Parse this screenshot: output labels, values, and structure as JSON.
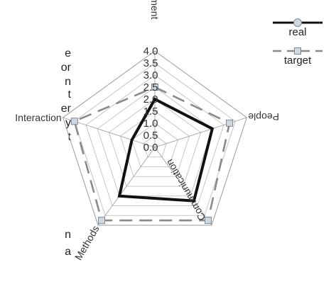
{
  "page_text": [
    "e",
    "or",
    "n",
    "t",
    "er",
    "y",
    "t",
    "n",
    "a"
  ],
  "chart_data": {
    "type": "radar",
    "axes": [
      "Commitment",
      "People",
      "Communication",
      "Methods",
      "Interaction"
    ],
    "ticks": [
      "0.0",
      "0.5",
      "1.0",
      "1.5",
      "2.0",
      "2.5",
      "3.0",
      "3.5",
      "4.0"
    ],
    "rmax": 4.0,
    "series": [
      {
        "name": "real",
        "values": [
          2.0,
          2.5,
          2.75,
          2.5,
          1.0
        ],
        "color": "#111111",
        "style": "solid"
      },
      {
        "name": "target",
        "values": [
          2.5,
          3.25,
          3.75,
          3.75,
          3.5
        ],
        "color": "#8a8a8a",
        "style": "dashed"
      }
    ],
    "legend_position": "top-right",
    "grid": true
  }
}
